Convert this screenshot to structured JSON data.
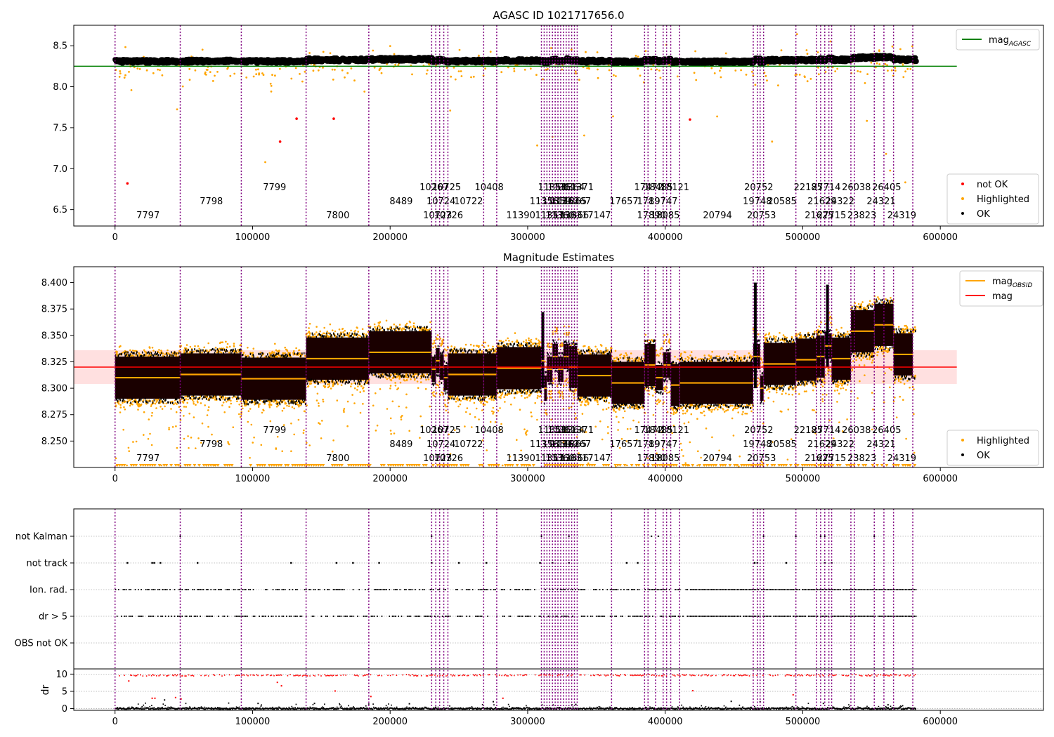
{
  "obs_starts": [
    0,
    47400,
    91800,
    138900,
    184500,
    230200,
    233200,
    236000,
    239000,
    242000,
    268000,
    277500,
    310000,
    312000,
    314000,
    316000,
    318000,
    320000,
    322000,
    324000,
    326000,
    328000,
    330000,
    332000,
    334000,
    336000,
    361000,
    385000,
    387500,
    393000,
    398500,
    401000,
    404000,
    410500,
    464000,
    467000,
    469000,
    471500,
    495000,
    510000,
    513000,
    516000,
    519000,
    521000,
    535000,
    537500,
    552000,
    559000,
    566000,
    580000
  ],
  "obs_labels": [
    {
      "t": "7797",
      "x": 24000,
      "row": 0
    },
    {
      "t": "7798",
      "x": 70000,
      "row": 1
    },
    {
      "t": "7799",
      "x": 116000,
      "row": 2
    },
    {
      "t": "7800",
      "x": 162000,
      "row": 0
    },
    {
      "t": "8489",
      "x": 208000,
      "row": 1
    },
    {
      "t": "10267",
      "x": 232000,
      "row": 2
    },
    {
      "t": "10725",
      "x": 241000,
      "row": 2
    },
    {
      "t": "10724",
      "x": 237000,
      "row": 1
    },
    {
      "t": "10723",
      "x": 234500,
      "row": 0
    },
    {
      "t": "10726",
      "x": 242500,
      "row": 0
    },
    {
      "t": "10722",
      "x": 257000,
      "row": 1
    },
    {
      "t": "10408",
      "x": 272000,
      "row": 2
    },
    {
      "t": "11390",
      "x": 295000,
      "row": 0
    },
    {
      "t": "11356",
      "x": 312000,
      "row": 1
    },
    {
      "t": "11357",
      "x": 316000,
      "row": 0
    },
    {
      "t": "11358",
      "x": 318000,
      "row": 2
    },
    {
      "t": "11359",
      "x": 321000,
      "row": 1
    },
    {
      "t": "11360",
      "x": 323500,
      "row": 0
    },
    {
      "t": "11361",
      "x": 325000,
      "row": 2
    },
    {
      "t": "11362",
      "x": 327000,
      "row": 1
    },
    {
      "t": "11363",
      "x": 329000,
      "row": 0
    },
    {
      "t": "11364",
      "x": 331000,
      "row": 2
    },
    {
      "t": "11365",
      "x": 332500,
      "row": 1
    },
    {
      "t": "11366",
      "x": 334000,
      "row": 0
    },
    {
      "t": "11367",
      "x": 335500,
      "row": 1
    },
    {
      "t": "17147",
      "x": 350000,
      "row": 0
    },
    {
      "t": "11371",
      "x": 337500,
      "row": 2
    },
    {
      "t": "17657",
      "x": 370000,
      "row": 1
    },
    {
      "t": "17472",
      "x": 388000,
      "row": 2
    },
    {
      "t": "17890",
      "x": 390000,
      "row": 0
    },
    {
      "t": "17897",
      "x": 390000,
      "row": 1
    },
    {
      "t": "18485",
      "x": 395000,
      "row": 2
    },
    {
      "t": "19747",
      "x": 398500,
      "row": 1
    },
    {
      "t": "18085",
      "x": 400000,
      "row": 0
    },
    {
      "t": "18121",
      "x": 407000,
      "row": 2
    },
    {
      "t": "20794",
      "x": 438000,
      "row": 0
    },
    {
      "t": "20752",
      "x": 468000,
      "row": 2
    },
    {
      "t": "19748",
      "x": 467000,
      "row": 1
    },
    {
      "t": "20753",
      "x": 470000,
      "row": 0
    },
    {
      "t": "20585",
      "x": 485000,
      "row": 1
    },
    {
      "t": "22185",
      "x": 504000,
      "row": 2
    },
    {
      "t": "27714",
      "x": 517000,
      "row": 2
    },
    {
      "t": "21629",
      "x": 514000,
      "row": 1
    },
    {
      "t": "21625",
      "x": 512000,
      "row": 0
    },
    {
      "t": "24322",
      "x": 527000,
      "row": 1
    },
    {
      "t": "27715",
      "x": 521000,
      "row": 0
    },
    {
      "t": "26038",
      "x": 539000,
      "row": 2
    },
    {
      "t": "23823",
      "x": 543000,
      "row": 0
    },
    {
      "t": "24321",
      "x": 557000,
      "row": 1
    },
    {
      "t": "26405",
      "x": 561000,
      "row": 2
    },
    {
      "t": "24319",
      "x": 572000,
      "row": 0
    }
  ],
  "segments": [
    {
      "s": 0,
      "e": 47400,
      "m": 8.31
    },
    {
      "s": 47400,
      "e": 91800,
      "m": 8.313
    },
    {
      "s": 91800,
      "e": 138900,
      "m": 8.309
    },
    {
      "s": 138900,
      "e": 184500,
      "m": 8.328
    },
    {
      "s": 184500,
      "e": 230200,
      "m": 8.334
    },
    {
      "s": 230200,
      "e": 233200,
      "m": 8.318
    },
    {
      "s": 233200,
      "e": 236000,
      "m": 8.326
    },
    {
      "s": 236000,
      "e": 239000,
      "m": 8.32
    },
    {
      "s": 239000,
      "e": 242000,
      "m": 8.31
    },
    {
      "s": 242000,
      "e": 268000,
      "m": 8.313
    },
    {
      "s": 268000,
      "e": 277500,
      "m": 8.313
    },
    {
      "s": 277500,
      "e": 310000,
      "m": 8.319
    },
    {
      "s": 310000,
      "e": 312000,
      "m": 8.326
    },
    {
      "s": 312000,
      "e": 314000,
      "m": 8.3
    },
    {
      "s": 314000,
      "e": 318000,
      "m": 8.318
    },
    {
      "s": 318000,
      "e": 322000,
      "m": 8.33
    },
    {
      "s": 322000,
      "e": 326000,
      "m": 8.318
    },
    {
      "s": 326000,
      "e": 330000,
      "m": 8.33
    },
    {
      "s": 330000,
      "e": 336000,
      "m": 8.32
    },
    {
      "s": 336000,
      "e": 361000,
      "m": 8.312
    },
    {
      "s": 361000,
      "e": 385000,
      "m": 8.305
    },
    {
      "s": 385000,
      "e": 393000,
      "m": 8.322
    },
    {
      "s": 393000,
      "e": 398500,
      "m": 8.31
    },
    {
      "s": 398500,
      "e": 404000,
      "m": 8.322
    },
    {
      "s": 404000,
      "e": 410500,
      "m": 8.303
    },
    {
      "s": 410500,
      "e": 464000,
      "m": 8.305
    },
    {
      "s": 464000,
      "e": 469000,
      "m": 8.33
    },
    {
      "s": 469000,
      "e": 471500,
      "m": 8.3
    },
    {
      "s": 471500,
      "e": 495000,
      "m": 8.323
    },
    {
      "s": 495000,
      "e": 510000,
      "m": 8.327
    },
    {
      "s": 510000,
      "e": 516000,
      "m": 8.33
    },
    {
      "s": 516000,
      "e": 521000,
      "m": 8.34
    },
    {
      "s": 521000,
      "e": 535000,
      "m": 8.328
    },
    {
      "s": 535000,
      "e": 552000,
      "m": 8.354
    },
    {
      "s": 552000,
      "e": 566000,
      "m": 8.36
    },
    {
      "s": 566000,
      "e": 580000,
      "m": 8.332
    }
  ],
  "chart_data": [
    {
      "type": "scatter",
      "title": "AGASC ID 1021717656.0",
      "xlim": [
        -30000,
        675000
      ],
      "ylim": [
        6.3,
        8.75
      ],
      "xticks": [
        "0",
        "100000",
        "200000",
        "300000",
        "400000",
        "500000",
        "600000"
      ],
      "yticks": [
        "6.5",
        "7.0",
        "7.5",
        "8.0",
        "8.5"
      ],
      "reference_line": {
        "y": 8.25,
        "x": [
          -30000,
          612000
        ],
        "color": "#008000"
      },
      "legend_line": [
        {
          "label": "mag",
          "sub": "AGASC",
          "color": "#008000"
        }
      ],
      "legend_points": [
        {
          "label": "not OK",
          "color": "#ff0000"
        },
        {
          "label": "Highlighted",
          "color": "#ffa500"
        },
        {
          "label": "OK",
          "color": "#000000"
        }
      ],
      "series_notok": [
        [
          9000,
          6.82
        ],
        [
          120000,
          7.33
        ],
        [
          132000,
          7.61
        ],
        [
          159000,
          7.61
        ],
        [
          418000,
          7.6
        ]
      ]
    },
    {
      "type": "scatter",
      "title": "Magnitude Estimates",
      "xlim": [
        -30000,
        675000
      ],
      "ylim": [
        8.225,
        8.415
      ],
      "xticks": [
        "0",
        "100000",
        "200000",
        "300000",
        "400000",
        "500000",
        "600000"
      ],
      "yticks": [
        "8.250",
        "8.275",
        "8.300",
        "8.325",
        "8.350",
        "8.375",
        "8.400"
      ],
      "reference_line": {
        "y": 8.32,
        "band": [
          8.304,
          8.336
        ],
        "x": [
          -30000,
          612000
        ],
        "color": "#ff0000"
      },
      "legend_line": [
        {
          "label": "mag",
          "sub": "OBSID",
          "color": "#ffa500"
        },
        {
          "label": "mag",
          "sub": "",
          "color": "#ff0000"
        }
      ],
      "legend_points": [
        {
          "label": "Highlighted",
          "color": "#ffa500"
        },
        {
          "label": "OK",
          "color": "#000000"
        }
      ]
    },
    {
      "type": "scatter",
      "title": "",
      "xlim": [
        -30000,
        675000
      ],
      "category_ticks": [
        "not Kalman",
        "not track",
        "Ion. rad.",
        "dr > 5",
        "OBS not OK"
      ],
      "flags_x_max": 582000,
      "not_kalman_x": [
        47400,
        230200,
        310000,
        330000,
        390000,
        395000,
        471500,
        495000,
        513000,
        516000,
        552000
      ],
      "not_track_x": [
        9000,
        27000,
        28500,
        33000,
        60000,
        128000,
        161000,
        173000,
        192000,
        230200,
        250000,
        270000,
        309000,
        318000,
        330000,
        372000,
        380000,
        465000,
        467000,
        488000,
        516000,
        521000
      ],
      "dr_panel": {
        "ylabel": "dr",
        "ylim": [
          -0.5,
          11.5
        ],
        "yticks": [
          "0",
          "5",
          "10"
        ],
        "mid_points": [
          [
            10000,
            8.0
          ],
          [
            27000,
            3.0
          ],
          [
            29000,
            3.0
          ],
          [
            36000,
            2.5
          ],
          [
            44000,
            3.2
          ],
          [
            48000,
            2.8
          ],
          [
            104000,
            1.5
          ],
          [
            118000,
            7.6
          ],
          [
            121000,
            6.6
          ],
          [
            145000,
            1.5
          ],
          [
            160000,
            5.1
          ],
          [
            186000,
            3.5
          ],
          [
            214000,
            1.4
          ],
          [
            275000,
            2.0
          ],
          [
            282000,
            3.0
          ],
          [
            335000,
            1.2
          ],
          [
            420000,
            5.2
          ],
          [
            448000,
            2.1
          ],
          [
            469000,
            2.0
          ],
          [
            493000,
            4.0
          ],
          [
            515000,
            1.5
          ],
          [
            562000,
            1.1
          ]
        ]
      }
    }
  ]
}
